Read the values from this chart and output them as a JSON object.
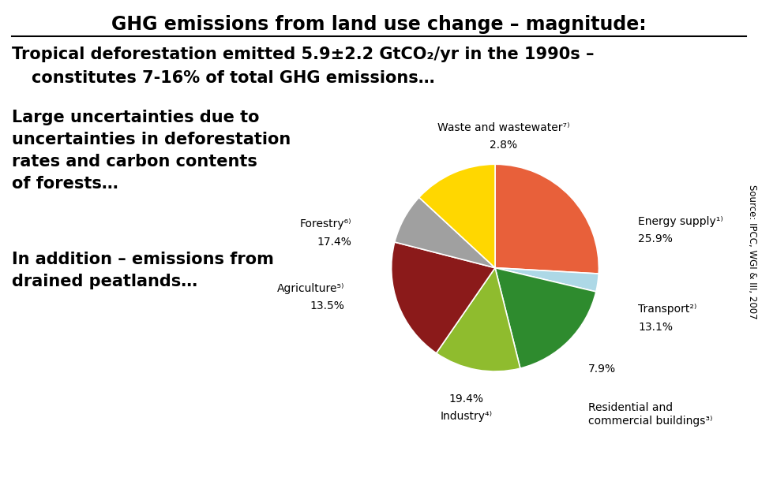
{
  "title": "GHG emissions from land use change – magnitude:",
  "subtitle_line1": "Tropical deforestation emitted 5.9±2.2 GtCO₂/yr in the 1990s –",
  "subtitle_line2": "constitutes 7-16% of total GHG emissions…",
  "text_block1_line1": "Large uncertainties due to",
  "text_block1_line2": "uncertainties in deforestation",
  "text_block1_line3": "rates and carbon contents",
  "text_block1_line4": "of forests…",
  "text_block2_line1": "In addition – emissions from",
  "text_block2_line2": "drained peatlands…",
  "source_text": "Source: IPCC, WGI & III, 2007",
  "pie_values": [
    25.9,
    2.8,
    17.4,
    13.5,
    19.4,
    7.9,
    13.1
  ],
  "pie_colors": [
    "#E8603A",
    "#ADD8E6",
    "#2E8B2E",
    "#8FBC2E",
    "#8B1A1A",
    "#A0A0A0",
    "#FFD700"
  ],
  "pie_label_names": [
    "Energy supply¹⁾",
    "Waste and wastewater⁷⁾",
    "Forestry⁶⁾",
    "Agriculture⁵⁾",
    "Industry⁴⁾",
    "Residential and\ncommercial buildings³⁾",
    "Transport²⁾"
  ],
  "pie_pct_labels": [
    "25.9%",
    "2.8%",
    "17.4%",
    "13.5%",
    "19.4%",
    "7.9%",
    "13.1%"
  ],
  "background_color": "#FFFFFF",
  "startangle": 90,
  "title_fontsize": 17,
  "body_fontsize": 15,
  "label_fontsize": 10
}
